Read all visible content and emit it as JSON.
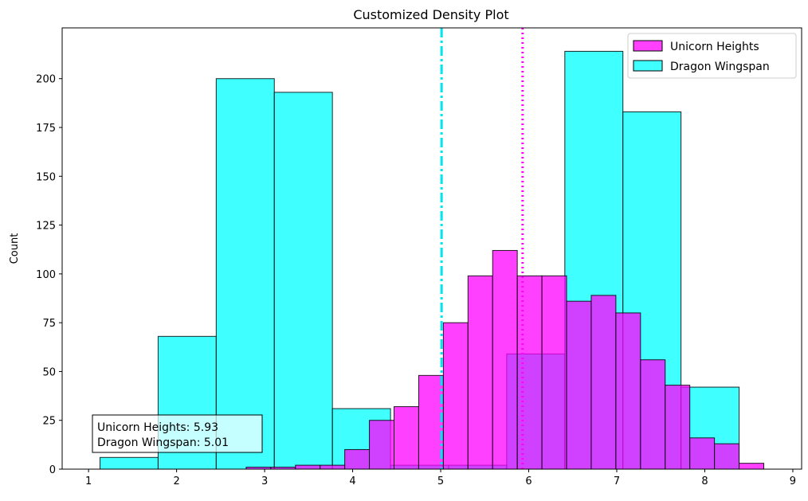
{
  "chart_data": {
    "type": "bar",
    "title": "Customized Density Plot",
    "xlabel": "",
    "ylabel": "Count",
    "xlim": [
      0.7,
      9.1
    ],
    "ylim": [
      0,
      226
    ],
    "xticks": [
      1,
      2,
      3,
      4,
      5,
      6,
      7,
      8,
      9
    ],
    "yticks": [
      0,
      25,
      50,
      75,
      100,
      125,
      150,
      175,
      200
    ],
    "grid": false,
    "legend_position": "top-right",
    "series": [
      {
        "name": "Dragon Wingspan",
        "color": "#00ffff",
        "bins": [
          {
            "x0": 1.13,
            "x1": 1.79,
            "count": 6
          },
          {
            "x0": 1.79,
            "x1": 2.45,
            "count": 68
          },
          {
            "x0": 2.45,
            "x1": 3.11,
            "count": 200
          },
          {
            "x0": 3.11,
            "x1": 3.77,
            "count": 193
          },
          {
            "x0": 3.77,
            "x1": 4.43,
            "count": 31
          },
          {
            "x0": 4.43,
            "x1": 5.09,
            "count": 2
          },
          {
            "x0": 5.09,
            "x1": 5.75,
            "count": 2
          },
          {
            "x0": 5.75,
            "x1": 6.41,
            "count": 59
          },
          {
            "x0": 6.41,
            "x1": 7.07,
            "count": 214
          },
          {
            "x0": 7.07,
            "x1": 7.73,
            "count": 183
          },
          {
            "x0": 7.73,
            "x1": 8.39,
            "count": 42
          }
        ]
      },
      {
        "name": "Unicorn Heights",
        "color": "#ff00ff",
        "bins": [
          {
            "x0": 2.79,
            "x1": 3.07,
            "count": 1
          },
          {
            "x0": 3.07,
            "x1": 3.35,
            "count": 1
          },
          {
            "x0": 3.35,
            "x1": 3.63,
            "count": 2
          },
          {
            "x0": 3.63,
            "x1": 3.91,
            "count": 2
          },
          {
            "x0": 3.91,
            "x1": 4.19,
            "count": 10
          },
          {
            "x0": 4.19,
            "x1": 4.47,
            "count": 25
          },
          {
            "x0": 4.47,
            "x1": 4.75,
            "count": 32
          },
          {
            "x0": 4.75,
            "x1": 5.03,
            "count": 48
          },
          {
            "x0": 5.03,
            "x1": 5.31,
            "count": 75
          },
          {
            "x0": 5.31,
            "x1": 5.59,
            "count": 99
          },
          {
            "x0": 5.59,
            "x1": 5.87,
            "count": 112
          },
          {
            "x0": 5.87,
            "x1": 6.15,
            "count": 99
          },
          {
            "x0": 6.15,
            "x1": 6.43,
            "count": 99
          },
          {
            "x0": 6.43,
            "x1": 6.71,
            "count": 86
          },
          {
            "x0": 6.71,
            "x1": 6.99,
            "count": 89
          },
          {
            "x0": 6.99,
            "x1": 7.27,
            "count": 80
          },
          {
            "x0": 7.27,
            "x1": 7.55,
            "count": 56
          },
          {
            "x0": 7.55,
            "x1": 7.83,
            "count": 43
          },
          {
            "x0": 7.83,
            "x1": 8.11,
            "count": 16
          },
          {
            "x0": 8.11,
            "x1": 8.39,
            "count": 13
          },
          {
            "x0": 8.39,
            "x1": 8.67,
            "count": 3
          }
        ]
      }
    ],
    "mean_lines": [
      {
        "series": "Unicorn Heights",
        "value": 5.93,
        "color": "#ff00ff",
        "style": "dotted"
      },
      {
        "series": "Dragon Wingspan",
        "value": 5.01,
        "color": "#00e5ee",
        "style": "dashdot"
      }
    ],
    "legend": [
      {
        "label": "Unicorn Heights",
        "color": "#ff00ff"
      },
      {
        "label": "Dragon Wingspan",
        "color": "#00ffff"
      }
    ],
    "annotation": {
      "line1": "Unicorn Heights: 5.93",
      "line2": "Dragon Wingspan: 5.01"
    }
  }
}
